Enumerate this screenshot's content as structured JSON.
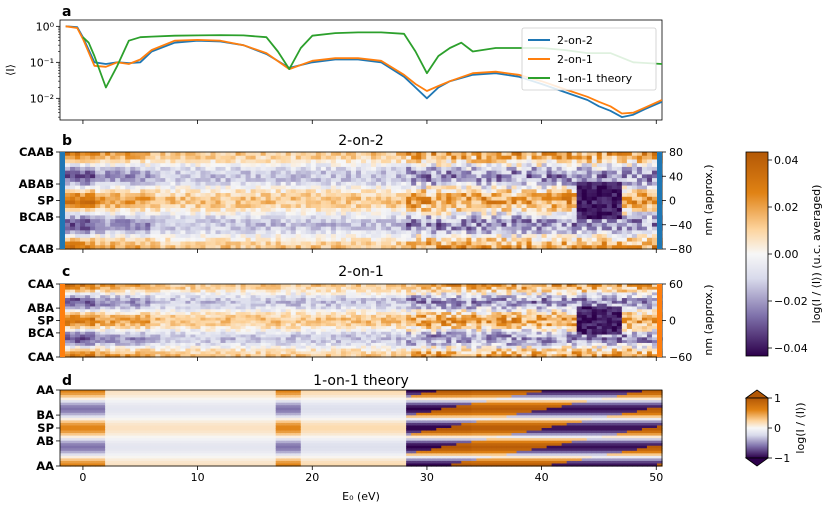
{
  "figure": {
    "xlabel": "E₀ (eV)",
    "xticks": [
      "0",
      "10",
      "20",
      "30",
      "40",
      "50"
    ],
    "xlim": [
      -2,
      50.5
    ]
  },
  "panel_a": {
    "letter": "a",
    "ylabel": "⟨I⟩",
    "yticks": [
      "10⁰",
      "10⁻¹",
      "10⁻²"
    ],
    "legend": [
      "2-on-2",
      "2-on-1",
      "1-on-1 theory"
    ]
  },
  "panel_b": {
    "letter": "b",
    "title": "2-on-2",
    "yticks": [
      "CAAB",
      "ABAB",
      "SP",
      "BCAB",
      "CAAB"
    ],
    "right_ticks": [
      "80",
      "40",
      "0",
      "−40",
      "−80"
    ],
    "right_label": "nm (approx.)"
  },
  "panel_c": {
    "letter": "c",
    "title": "2-on-1",
    "yticks": [
      "CAA",
      "ABA",
      "SP",
      "BCA",
      "CAA"
    ],
    "right_ticks": [
      "60",
      "0",
      "−60"
    ],
    "right_label": "nm (approx.)"
  },
  "panel_d": {
    "letter": "d",
    "title": "1-on-1 theory",
    "yticks": [
      "AA",
      "BA",
      "SP",
      "AB",
      "AA"
    ]
  },
  "colorbar_1": {
    "ticks": [
      "0.04",
      "0.02",
      "0.00",
      "−0.02",
      "−0.04"
    ],
    "label": "log(I / ⟨I⟩) (u.c. averaged)"
  },
  "colorbar_2": {
    "ticks": [
      "1",
      "0",
      "−1"
    ],
    "label": "log(I / ⟨I⟩)"
  },
  "colors": {
    "blue": "#1f77b4",
    "orange": "#ff7f0e",
    "green": "#2ca02c",
    "pos": "#b35806",
    "neg": "#2d004b"
  },
  "chart_data": [
    {
      "type": "line",
      "panel": "a",
      "yscale": "log",
      "ylim": [
        0.0025,
        1.5
      ],
      "xlim": [
        -2,
        50.5
      ],
      "series": [
        {
          "name": "2-on-2",
          "color": "#1f77b4",
          "x": [
            -1.5,
            -0.5,
            0,
            1,
            2,
            3,
            4,
            5,
            6,
            8,
            10,
            12,
            14,
            16,
            18,
            20,
            22,
            24,
            26,
            28,
            29,
            30,
            31,
            32,
            34,
            36,
            38,
            40,
            42,
            44,
            45,
            46,
            47,
            48,
            49,
            50.5
          ],
          "y": [
            1.0,
            0.95,
            0.5,
            0.1,
            0.09,
            0.1,
            0.095,
            0.1,
            0.2,
            0.35,
            0.4,
            0.38,
            0.3,
            0.17,
            0.07,
            0.1,
            0.12,
            0.12,
            0.1,
            0.04,
            0.02,
            0.01,
            0.02,
            0.03,
            0.045,
            0.05,
            0.04,
            0.025,
            0.015,
            0.009,
            0.006,
            0.0045,
            0.003,
            0.0035,
            0.005,
            0.008
          ]
        },
        {
          "name": "2-on-1",
          "color": "#ff7f0e",
          "x": [
            -1.5,
            -0.5,
            0,
            1,
            2,
            3,
            4,
            5,
            6,
            8,
            10,
            12,
            14,
            16,
            18,
            20,
            22,
            24,
            26,
            28,
            29,
            30,
            31,
            32,
            34,
            36,
            38,
            40,
            42,
            44,
            45,
            46,
            47,
            48,
            49,
            50.5
          ],
          "y": [
            1.0,
            0.9,
            0.45,
            0.08,
            0.075,
            0.1,
            0.09,
            0.12,
            0.22,
            0.4,
            0.42,
            0.4,
            0.3,
            0.18,
            0.065,
            0.11,
            0.13,
            0.13,
            0.11,
            0.045,
            0.025,
            0.016,
            0.022,
            0.03,
            0.05,
            0.055,
            0.045,
            0.03,
            0.018,
            0.011,
            0.008,
            0.006,
            0.0038,
            0.004,
            0.0055,
            0.009
          ]
        },
        {
          "name": "1-on-1 theory",
          "color": "#2ca02c",
          "x": [
            0,
            0.5,
            1,
            2,
            3,
            4,
            5,
            6,
            8,
            10,
            12,
            14,
            16,
            17,
            18,
            19,
            20,
            22,
            24,
            26,
            28,
            29,
            30,
            31,
            32,
            33,
            34,
            36,
            38,
            40,
            42,
            44,
            46,
            48,
            50.5
          ],
          "y": [
            0.5,
            0.35,
            0.15,
            0.02,
            0.08,
            0.4,
            0.5,
            0.52,
            0.55,
            0.56,
            0.57,
            0.56,
            0.5,
            0.2,
            0.065,
            0.25,
            0.55,
            0.65,
            0.68,
            0.68,
            0.62,
            0.2,
            0.05,
            0.15,
            0.25,
            0.35,
            0.2,
            0.25,
            0.25,
            0.25,
            0.22,
            0.18,
            0.18,
            0.1,
            0.09
          ]
        }
      ]
    },
    {
      "type": "heatmap",
      "panel": "b",
      "title": "2-on-2",
      "xlim": [
        -2,
        50.5
      ],
      "ylim_nm": [
        -80,
        80
      ],
      "colorbar": [
        -0.045,
        0.045
      ]
    },
    {
      "type": "heatmap",
      "panel": "c",
      "title": "2-on-1",
      "xlim": [
        -2,
        50.5
      ],
      "ylim_nm": [
        -60,
        60
      ],
      "colorbar": [
        -0.045,
        0.045
      ]
    },
    {
      "type": "heatmap",
      "panel": "d",
      "title": "1-on-1 theory",
      "xlim": [
        -2,
        50.5
      ],
      "colorbar": [
        -1,
        1
      ]
    }
  ]
}
